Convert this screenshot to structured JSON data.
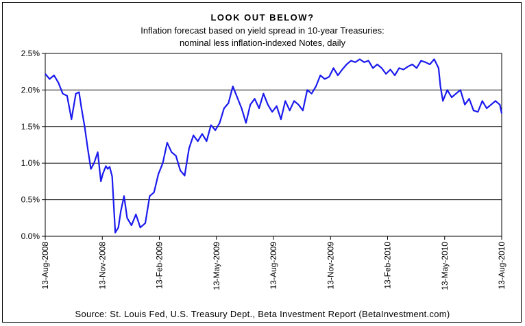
{
  "chart_data": {
    "type": "line",
    "title": "LOOK OUT BELOW?",
    "subtitle_line1": "Inflation forecast based on yield spread in 10-year Treasuries:",
    "subtitle_line2": "nominal less inflation-indexed Notes, daily",
    "source": "Source: St. Louis Fed, U.S. Treasury Dept., Beta Investment Report (BetaInvestment.com)",
    "ylim": [
      0,
      2.5
    ],
    "y_ticks": [
      {
        "value": 0.0,
        "label": "0.0%"
      },
      {
        "value": 0.5,
        "label": "0.5%"
      },
      {
        "value": 1.0,
        "label": "1.0%"
      },
      {
        "value": 1.5,
        "label": "1.5%"
      },
      {
        "value": 2.0,
        "label": "2.0%"
      },
      {
        "value": 2.5,
        "label": "2.5%"
      }
    ],
    "x_ticks": [
      "13-Aug-2008",
      "13-Nov-2008",
      "13-Feb-2009",
      "13-May-2009",
      "13-Aug-2009",
      "13-Nov-2009",
      "13-Feb-2010",
      "13-May-2010",
      "13-Aug-2010"
    ],
    "grid": "horizontal",
    "line_color": "#1a1aee",
    "series": [
      {
        "x": [
          "2008-08-13",
          "2008-08-20",
          "2008-08-27",
          "2008-09-03",
          "2008-09-10",
          "2008-09-17",
          "2008-09-24",
          "2008-10-01",
          "2008-10-06",
          "2008-10-10",
          "2008-10-15",
          "2008-10-20",
          "2008-10-25",
          "2008-10-30",
          "2008-11-05",
          "2008-11-10",
          "2008-11-13",
          "2008-11-18",
          "2008-11-21",
          "2008-11-24",
          "2008-11-28",
          "2008-12-03",
          "2008-12-08",
          "2008-12-12",
          "2008-12-17",
          "2008-12-22",
          "2008-12-29",
          "2009-01-05",
          "2009-01-12",
          "2009-01-20",
          "2009-01-27",
          "2009-02-03",
          "2009-02-10",
          "2009-02-17",
          "2009-02-24",
          "2009-03-03",
          "2009-03-10",
          "2009-03-17",
          "2009-03-24",
          "2009-03-31",
          "2009-04-07",
          "2009-04-14",
          "2009-04-21",
          "2009-04-28",
          "2009-05-05",
          "2009-05-12",
          "2009-05-19",
          "2009-05-26",
          "2009-06-02",
          "2009-06-09",
          "2009-06-16",
          "2009-06-23",
          "2009-06-30",
          "2009-07-07",
          "2009-07-14",
          "2009-07-21",
          "2009-07-28",
          "2009-08-04",
          "2009-08-11",
          "2009-08-18",
          "2009-08-25",
          "2009-09-01",
          "2009-09-08",
          "2009-09-15",
          "2009-09-22",
          "2009-09-29",
          "2009-10-06",
          "2009-10-13",
          "2009-10-20",
          "2009-10-27",
          "2009-11-03",
          "2009-11-10",
          "2009-11-17",
          "2009-11-24",
          "2009-12-01",
          "2009-12-08",
          "2009-12-15",
          "2009-12-22",
          "2009-12-29",
          "2010-01-05",
          "2010-01-12",
          "2010-01-19",
          "2010-01-26",
          "2010-02-02",
          "2010-02-09",
          "2010-02-16",
          "2010-02-23",
          "2010-03-02",
          "2010-03-09",
          "2010-03-16",
          "2010-03-23",
          "2010-03-30",
          "2010-04-06",
          "2010-04-13",
          "2010-04-20",
          "2010-04-27",
          "2010-05-04",
          "2010-05-07",
          "2010-05-11",
          "2010-05-18",
          "2010-05-25",
          "2010-06-01",
          "2010-06-08",
          "2010-06-15",
          "2010-06-22",
          "2010-06-29",
          "2010-07-06",
          "2010-07-13",
          "2010-07-20",
          "2010-07-27",
          "2010-08-03",
          "2010-08-10",
          "2010-08-13"
        ],
        "y": [
          2.22,
          2.15,
          2.2,
          2.1,
          1.95,
          1.92,
          1.6,
          1.95,
          1.97,
          1.75,
          1.5,
          1.2,
          0.92,
          1.0,
          1.15,
          0.75,
          0.85,
          0.96,
          0.92,
          0.95,
          0.82,
          0.05,
          0.12,
          0.35,
          0.55,
          0.25,
          0.15,
          0.3,
          0.12,
          0.18,
          0.55,
          0.6,
          0.85,
          1.0,
          1.28,
          1.15,
          1.1,
          0.9,
          0.83,
          1.2,
          1.38,
          1.3,
          1.4,
          1.3,
          1.52,
          1.45,
          1.55,
          1.75,
          1.82,
          2.05,
          1.9,
          1.75,
          1.55,
          1.8,
          1.88,
          1.75,
          1.95,
          1.8,
          1.7,
          1.78,
          1.6,
          1.85,
          1.72,
          1.85,
          1.8,
          1.72,
          2.0,
          1.95,
          2.05,
          2.2,
          2.15,
          2.18,
          2.3,
          2.2,
          2.28,
          2.35,
          2.4,
          2.38,
          2.42,
          2.38,
          2.4,
          2.3,
          2.35,
          2.3,
          2.22,
          2.28,
          2.2,
          2.3,
          2.28,
          2.32,
          2.35,
          2.3,
          2.4,
          2.38,
          2.35,
          2.42,
          2.3,
          2.05,
          1.85,
          2.0,
          1.9,
          1.95,
          2.0,
          1.8,
          1.88,
          1.72,
          1.7,
          1.85,
          1.75,
          1.8,
          1.85,
          1.8,
          1.68
        ]
      }
    ]
  }
}
